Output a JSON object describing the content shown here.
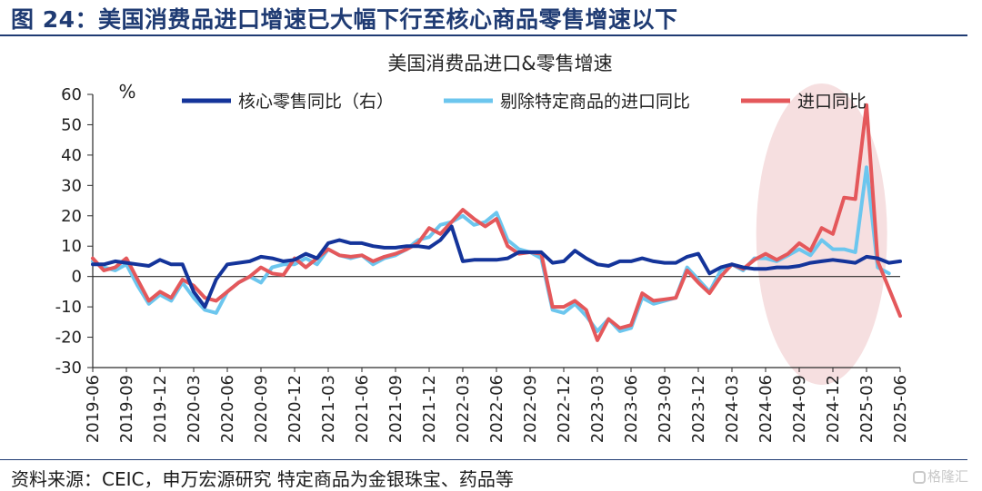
{
  "header": {
    "title": "图 24：美国消费品进口增速已大幅下行至核心商品零售增速以下"
  },
  "footer": {
    "source": "资料来源：CEIC，申万宏源研究  特定商品为金银珠宝、药品等"
  },
  "watermark": {
    "text": "格隆汇"
  },
  "colors": {
    "core": "#14349a",
    "excl": "#6cc6ee",
    "imports": "#e4585b",
    "highlight": "#f6dfe0",
    "axis": "#2a2a2a"
  },
  "chart_data": {
    "type": "line",
    "title": "美国消费品进口&零售增速",
    "unit": "%",
    "x": [
      "2019-06",
      "2019-07",
      "2019-08",
      "2019-09",
      "2019-10",
      "2019-11",
      "2019-12",
      "2020-01",
      "2020-02",
      "2020-03",
      "2020-04",
      "2020-05",
      "2020-06",
      "2020-07",
      "2020-08",
      "2020-09",
      "2020-10",
      "2020-11",
      "2020-12",
      "2021-01",
      "2021-02",
      "2021-03",
      "2021-04",
      "2021-05",
      "2021-06",
      "2021-07",
      "2021-08",
      "2021-09",
      "2021-10",
      "2021-11",
      "2021-12",
      "2022-01",
      "2022-02",
      "2022-03",
      "2022-04",
      "2022-05",
      "2022-06",
      "2022-07",
      "2022-08",
      "2022-09",
      "2022-10",
      "2022-11",
      "2022-12",
      "2023-01",
      "2023-02",
      "2023-03",
      "2023-04",
      "2023-05",
      "2023-06",
      "2023-07",
      "2023-08",
      "2023-09",
      "2023-10",
      "2023-11",
      "2023-12",
      "2024-01",
      "2024-02",
      "2024-03",
      "2024-04",
      "2024-05",
      "2024-06",
      "2024-07",
      "2024-08",
      "2024-09",
      "2024-10",
      "2024-11",
      "2024-12",
      "2025-01",
      "2025-02",
      "2025-03",
      "2025-04",
      "2025-05",
      "2025-06"
    ],
    "tick_labels": [
      "2019-06",
      "2019-09",
      "2019-12",
      "2020-03",
      "2020-06",
      "2020-09",
      "2020-12",
      "2021-03",
      "2021-06",
      "2021-09",
      "2021-12",
      "2022-03",
      "2022-06",
      "2022-09",
      "2022-12",
      "2023-03",
      "2023-06",
      "2023-09",
      "2023-12",
      "2024-03",
      "2024-06",
      "2024-09",
      "2024-12",
      "2025-03",
      "2025-06"
    ],
    "ylim": [
      -30,
      60
    ],
    "yticks": [
      -30,
      -20,
      -10,
      0,
      10,
      20,
      30,
      40,
      50,
      60
    ],
    "legend": {
      "position": "top"
    },
    "series": [
      {
        "name": "核心零售同比（右）",
        "key": "core",
        "values": [
          4,
          4,
          5,
          4.5,
          4,
          3.5,
          5.5,
          4,
          4,
          -5,
          -10,
          -1,
          4,
          4.5,
          5,
          6.5,
          6,
          5,
          5.5,
          7.5,
          6,
          11,
          12,
          11,
          11,
          10,
          9.5,
          9.5,
          10,
          10,
          9.5,
          12,
          16.5,
          5,
          5.5,
          5.5,
          5.5,
          6,
          8,
          8,
          8,
          4.5,
          5,
          8.5,
          6,
          4,
          3.5,
          5,
          5,
          6,
          5,
          4.5,
          4.5,
          6.5,
          7.5,
          1,
          3,
          4,
          3,
          2.5,
          2.5,
          3,
          3,
          3.5,
          4.5,
          5,
          5.5,
          5,
          4.5,
          6.5,
          6,
          4.5,
          5
        ]
      },
      {
        "name": "剔除特定商品的进口同比",
        "key": "excl",
        "values": [
          5,
          3,
          2,
          4,
          -3,
          -9,
          -6,
          -8,
          -2,
          -7,
          -11,
          -12,
          -5,
          -2,
          0,
          -2,
          3,
          4,
          4,
          6,
          4,
          9,
          7,
          6,
          7,
          4,
          6,
          7,
          9,
          12,
          13,
          17,
          18,
          20,
          17,
          18,
          21,
          12,
          9,
          8,
          6,
          -11,
          -12,
          -9,
          -13,
          -18,
          -14,
          -18,
          -17,
          -7,
          -9,
          -8,
          -7,
          3,
          -1,
          -5,
          2,
          4,
          2,
          6,
          6,
          5,
          7,
          9,
          7,
          12,
          9,
          9,
          8,
          36,
          3,
          1,
          null
        ]
      },
      {
        "name": "进口同比",
        "key": "imports",
        "values": [
          6,
          2,
          3,
          6,
          -1,
          -8,
          -5,
          -7,
          -1,
          -3,
          -7,
          -8,
          -5,
          -2,
          0,
          3,
          1,
          0.5,
          6,
          3,
          6,
          9,
          7,
          6.5,
          7,
          5,
          6.5,
          7.5,
          9,
          11,
          16,
          14,
          18,
          22,
          19,
          16.5,
          19,
          10,
          7.5,
          8,
          7.5,
          -10,
          -10,
          -8,
          -11,
          -21,
          -14,
          -17,
          -16,
          -5.5,
          -8,
          -7.5,
          -7,
          2,
          -2,
          -5.5,
          0,
          4,
          2.5,
          5.5,
          7.5,
          5.5,
          7.5,
          11,
          8.5,
          16,
          14,
          26,
          25.5,
          56.5,
          5,
          -4,
          -13
        ]
      }
    ]
  }
}
